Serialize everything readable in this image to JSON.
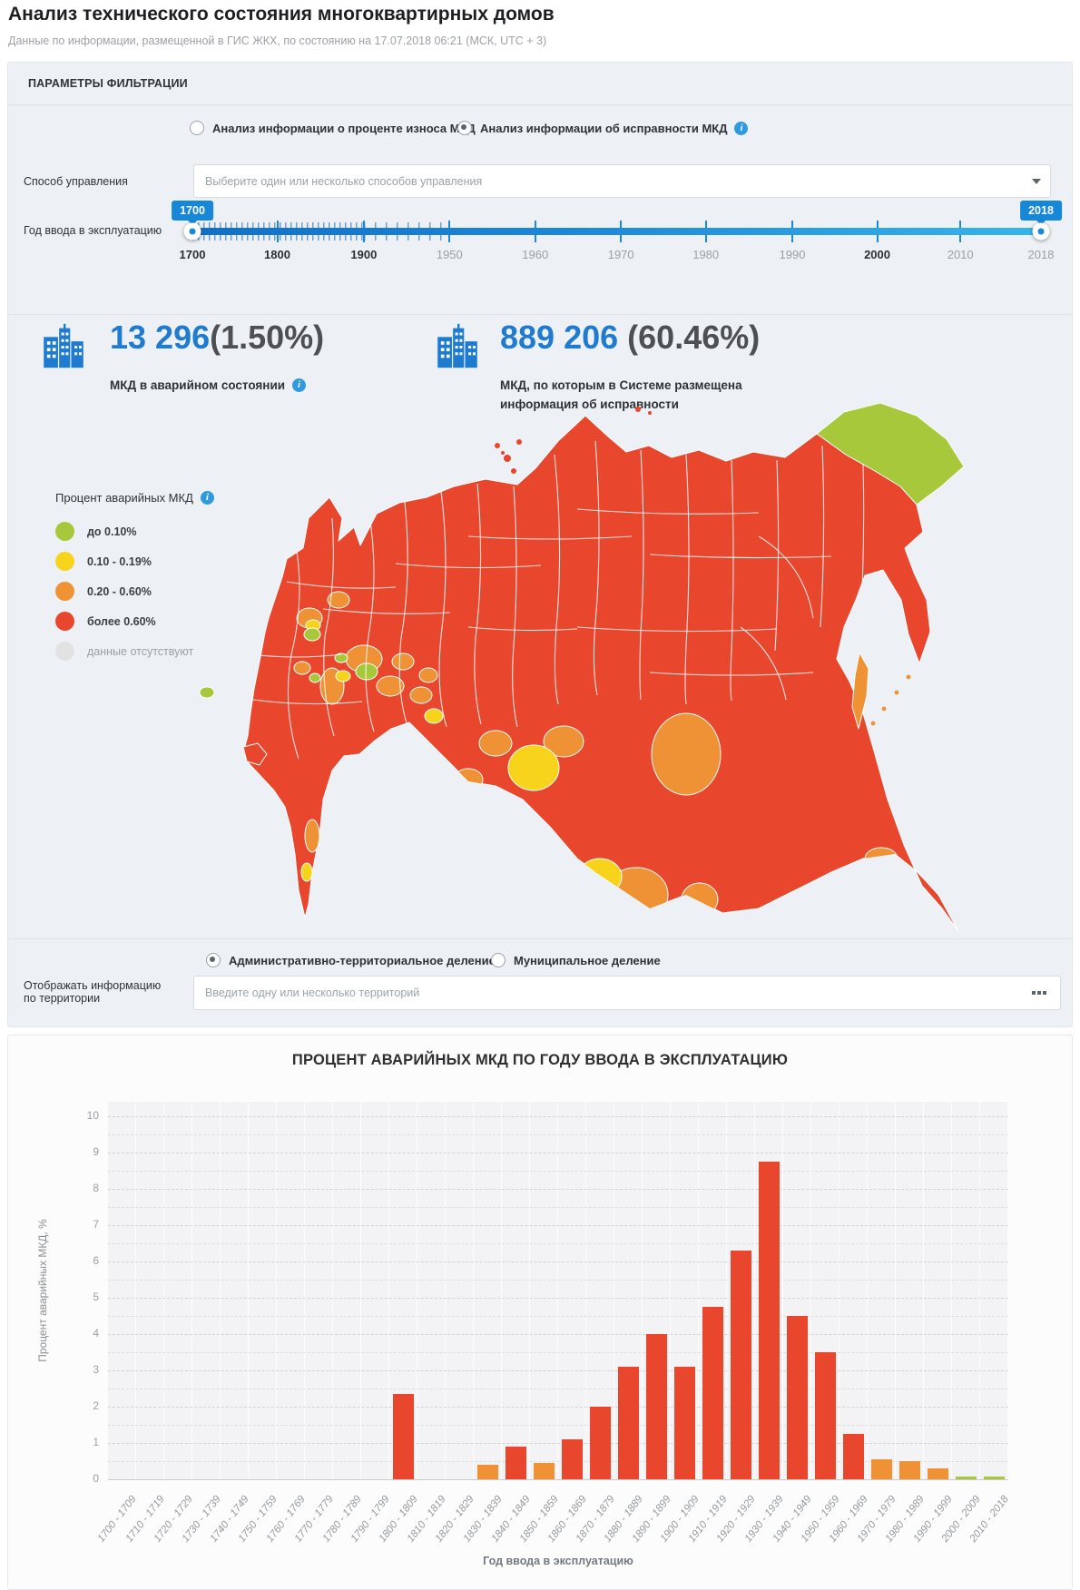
{
  "page": {
    "title": "Анализ технического состояния многоквартирных домов",
    "subtitle": "Данные по информации, размещенной в ГИС ЖКХ, по состоянию на 17.07.2018 06:21 (МСК, UTC + 3)"
  },
  "filter_panel": {
    "header": "ПАРАМЕТРЫ ФИЛЬТРАЦИИ",
    "analysis_options": [
      {
        "label": "Анализ информации о проценте износа МКД",
        "selected": false
      },
      {
        "label": "Анализ информации об исправности МКД",
        "selected": true
      }
    ],
    "management": {
      "label": "Способ управления",
      "placeholder": "Выберите один или несколько способов управления"
    },
    "year_slider": {
      "label": "Год ввода в эксплуатацию",
      "from": "1700",
      "to": "2018",
      "ticks": [
        {
          "label": "1700",
          "pos": 0,
          "bold": true
        },
        {
          "label": "1800",
          "pos": 10,
          "bold": true
        },
        {
          "label": "1900",
          "pos": 20.2,
          "bold": true
        },
        {
          "label": "1950",
          "pos": 30.3,
          "bold": false
        },
        {
          "label": "1960",
          "pos": 40.4,
          "bold": false
        },
        {
          "label": "1970",
          "pos": 50.5,
          "bold": false
        },
        {
          "label": "1980",
          "pos": 60.5,
          "bold": false
        },
        {
          "label": "1990",
          "pos": 70.7,
          "bold": false
        },
        {
          "label": "2000",
          "pos": 80.7,
          "bold": true
        },
        {
          "label": "2010",
          "pos": 90.5,
          "bold": false
        },
        {
          "label": "2018",
          "pos": 100,
          "bold": false
        }
      ]
    }
  },
  "stats": [
    {
      "value": "13 296",
      "percent": "(1.50%)",
      "caption": "МКД в аварийном состоянии",
      "info": true
    },
    {
      "value": "889 206",
      "percent": "(60.46%)",
      "caption_line1": "МКД, по которым в Системе размещена",
      "caption_line2": "информация об исправности"
    }
  ],
  "map_section": {
    "legend_title": "Процент аварийных МКД",
    "legend": [
      {
        "label": "до 0.10%",
        "color": "#a6c83a",
        "bold": true
      },
      {
        "label": "0.10 - 0.19%",
        "color": "#f8d31b",
        "bold": true
      },
      {
        "label": "0.20 - 0.60%",
        "color": "#ef9235",
        "bold": true
      },
      {
        "label": "более 0.60%",
        "color": "#e8472e",
        "bold": true
      },
      {
        "label": "данные отсутствуют",
        "color": "#e2e2e2",
        "bold": false
      }
    ]
  },
  "territory": {
    "options": [
      {
        "label": "Административно-территориальное деление",
        "selected": true
      },
      {
        "label": "Муниципальное деление",
        "selected": false
      }
    ],
    "label_line1": "Отображать информацию",
    "label_line2": "по территории",
    "placeholder": "Введите одну или несколько территорий"
  },
  "chart_data": {
    "type": "bar",
    "title": "ПРОЦЕНТ АВАРИЙНЫХ МКД ПО ГОДУ ВВОДА В ЭКСПЛУАТАЦИЮ",
    "xlabel": "Год ввода в эксплуатацию",
    "ylabel": "Процент аварийных МКД, %",
    "ylim": [
      0,
      10.4
    ],
    "ytick_step": 1,
    "grid": true,
    "legend_position": "none",
    "categories": [
      "1700 - 1709",
      "1710 - 1719",
      "1720 - 1729",
      "1730 - 1739",
      "1740 - 1749",
      "1750 - 1759",
      "1760 - 1769",
      "1770 - 1779",
      "1780 - 1789",
      "1790 - 1799",
      "1800 - 1809",
      "1810 - 1819",
      "1820 - 1829",
      "1830 - 1839",
      "1840 - 1849",
      "1850 - 1859",
      "1860 - 1869",
      "1870 - 1879",
      "1880 - 1889",
      "1890 - 1899",
      "1900 - 1909",
      "1910 - 1919",
      "1920 - 1929",
      "1930 - 1939",
      "1940 - 1949",
      "1950 - 1959",
      "1960 - 1969",
      "1970 - 1979",
      "1980 - 1989",
      "1990 - 1999",
      "2000 - 2009",
      "2010 - 2018"
    ],
    "values": [
      0,
      0,
      0,
      0,
      0,
      0,
      0,
      0,
      0,
      0,
      2.35,
      0,
      0,
      0.4,
      0.9,
      0.45,
      1.1,
      2.0,
      3.1,
      4.0,
      3.1,
      4.75,
      6.3,
      8.75,
      4.5,
      3.5,
      1.25,
      0.55,
      0.5,
      0.3,
      0.07,
      0.07
    ],
    "color_scale": {
      "green_below": 0.1,
      "yellow_below": 0.2,
      "orange_below": 0.61,
      "colors": {
        "green": "#a6c83a",
        "yellow": "#f8d31b",
        "orange": "#ef9235",
        "red": "#e8472e"
      }
    }
  },
  "colors": {
    "accent_blue": "#1e7bd0",
    "slider_blue": "#1787d8",
    "map_red": "#e8472e",
    "map_orange": "#ef9235",
    "map_yellow": "#f8d31b",
    "map_green": "#a6c83a"
  }
}
